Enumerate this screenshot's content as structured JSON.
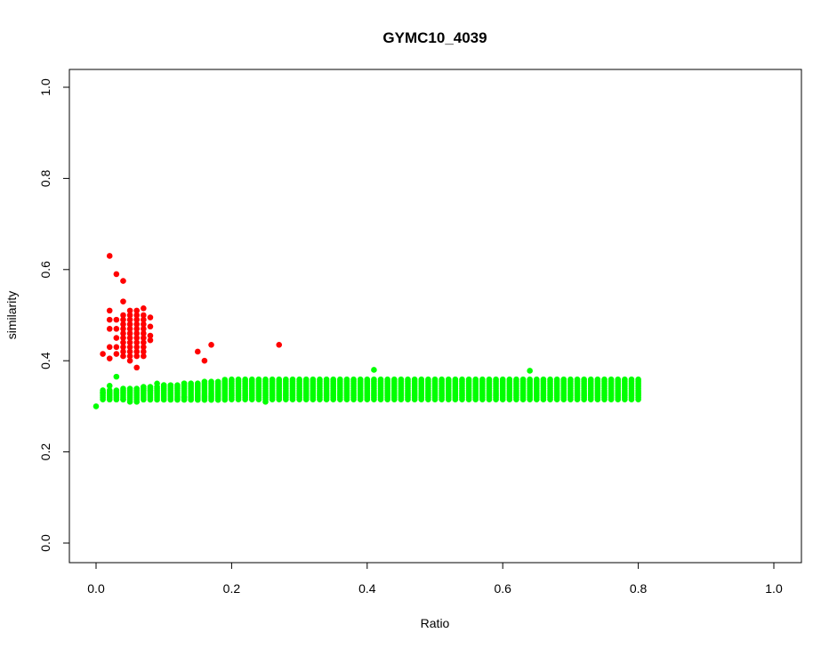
{
  "chart_data": {
    "type": "scatter",
    "title": "GYMC10_4039",
    "xlabel": "Ratio",
    "ylabel": "similarity",
    "xlim": [
      0,
      1
    ],
    "ylim": [
      0,
      1
    ],
    "xticks": [
      "0.0",
      "0.2",
      "0.4",
      "0.6",
      "0.8",
      "1.0"
    ],
    "yticks": [
      "0.0",
      "0.2",
      "0.4",
      "0.6",
      "0.8",
      "1.0"
    ],
    "grid": false,
    "legend": "none",
    "series": [
      {
        "color": "#ff0000",
        "points": [
          [
            0.01,
            0.415
          ],
          [
            0.02,
            0.63
          ],
          [
            0.02,
            0.51
          ],
          [
            0.02,
            0.49
          ],
          [
            0.02,
            0.47
          ],
          [
            0.02,
            0.43
          ],
          [
            0.02,
            0.405
          ],
          [
            0.03,
            0.59
          ],
          [
            0.03,
            0.49
          ],
          [
            0.03,
            0.47
          ],
          [
            0.03,
            0.45
          ],
          [
            0.03,
            0.43
          ],
          [
            0.03,
            0.415
          ],
          [
            0.04,
            0.575
          ],
          [
            0.04,
            0.53
          ],
          [
            0.04,
            0.5
          ],
          [
            0.04,
            0.49
          ],
          [
            0.04,
            0.48
          ],
          [
            0.04,
            0.47
          ],
          [
            0.04,
            0.46
          ],
          [
            0.04,
            0.45
          ],
          [
            0.04,
            0.44
          ],
          [
            0.04,
            0.43
          ],
          [
            0.04,
            0.42
          ],
          [
            0.04,
            0.41
          ],
          [
            0.05,
            0.51
          ],
          [
            0.05,
            0.5
          ],
          [
            0.05,
            0.49
          ],
          [
            0.05,
            0.48
          ],
          [
            0.05,
            0.47
          ],
          [
            0.05,
            0.46
          ],
          [
            0.05,
            0.45
          ],
          [
            0.05,
            0.44
          ],
          [
            0.05,
            0.43
          ],
          [
            0.05,
            0.42
          ],
          [
            0.05,
            0.41
          ],
          [
            0.05,
            0.4
          ],
          [
            0.06,
            0.51
          ],
          [
            0.06,
            0.5
          ],
          [
            0.06,
            0.49
          ],
          [
            0.06,
            0.48
          ],
          [
            0.06,
            0.47
          ],
          [
            0.06,
            0.46
          ],
          [
            0.06,
            0.45
          ],
          [
            0.06,
            0.44
          ],
          [
            0.06,
            0.43
          ],
          [
            0.06,
            0.42
          ],
          [
            0.06,
            0.41
          ],
          [
            0.06,
            0.385
          ],
          [
            0.07,
            0.515
          ],
          [
            0.07,
            0.5
          ],
          [
            0.07,
            0.49
          ],
          [
            0.07,
            0.48
          ],
          [
            0.07,
            0.47
          ],
          [
            0.07,
            0.46
          ],
          [
            0.07,
            0.45
          ],
          [
            0.07,
            0.44
          ],
          [
            0.07,
            0.43
          ],
          [
            0.07,
            0.42
          ],
          [
            0.07,
            0.41
          ],
          [
            0.08,
            0.495
          ],
          [
            0.08,
            0.475
          ],
          [
            0.08,
            0.455
          ],
          [
            0.08,
            0.445
          ],
          [
            0.15,
            0.42
          ],
          [
            0.16,
            0.4
          ],
          [
            0.17,
            0.435
          ],
          [
            0.27,
            0.435
          ]
        ]
      },
      {
        "color": "#00ff00",
        "band": {
          "x_start": 0.01,
          "x_end": 0.8,
          "x_step": 0.01,
          "center": 0.337,
          "half_width": 0.022
        },
        "points": [
          [
            0.0,
            0.3
          ],
          [
            0.01,
            0.33
          ],
          [
            0.02,
            0.345
          ],
          [
            0.03,
            0.365
          ],
          [
            0.04,
            0.315
          ],
          [
            0.05,
            0.31
          ],
          [
            0.06,
            0.31
          ],
          [
            0.08,
            0.335
          ],
          [
            0.09,
            0.35
          ],
          [
            0.13,
            0.32
          ],
          [
            0.25,
            0.31
          ],
          [
            0.41,
            0.38
          ],
          [
            0.64,
            0.378
          ],
          [
            0.48,
            0.32
          ]
        ]
      }
    ]
  }
}
